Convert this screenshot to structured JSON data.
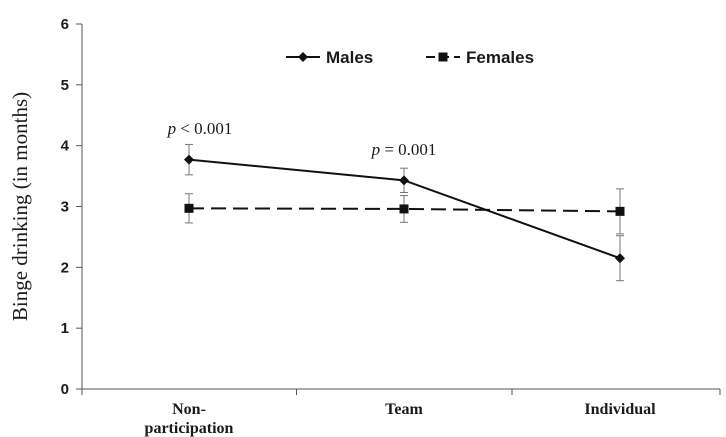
{
  "chart_data": {
    "type": "line",
    "categories": [
      "Non-participation",
      "Team",
      "Individual"
    ],
    "category_display": [
      [
        "Non-",
        "participation"
      ],
      [
        "Team"
      ],
      [
        "Individual"
      ]
    ],
    "ylabel": "Binge drinking (in months)",
    "xlabel": "",
    "ylim": [
      0,
      6
    ],
    "yticks": [
      0,
      1,
      2,
      3,
      4,
      5,
      6
    ],
    "grid": false,
    "legend_position": "top-center",
    "series": [
      {
        "name": "Males",
        "values": [
          3.77,
          3.43,
          2.15
        ],
        "errors": [
          0.25,
          0.2,
          0.37
        ],
        "marker": "diamond",
        "line_style": "solid",
        "color": "#111111"
      },
      {
        "name": "Females",
        "values": [
          2.97,
          2.96,
          2.92
        ],
        "errors": [
          0.24,
          0.22,
          0.37
        ],
        "marker": "square",
        "line_style": "dashed",
        "color": "#111111"
      }
    ],
    "annotations": [
      {
        "category": "Non-participation",
        "p": "p",
        "rest": " < 0.001"
      },
      {
        "category": "Team",
        "p": "p",
        "rest": " = 0.001"
      }
    ]
  }
}
